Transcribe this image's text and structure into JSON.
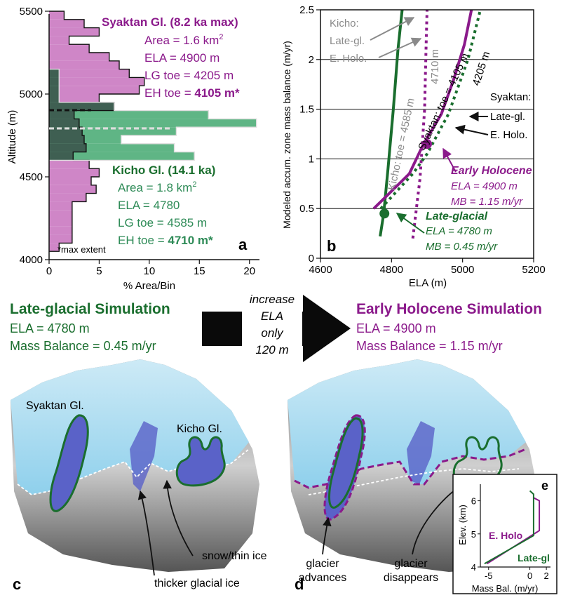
{
  "colors": {
    "purple": "#8b1a8b",
    "green": "#1a6e2e",
    "green_light": "#2e8b57",
    "hist_purple_fill": "#cf86c7",
    "hist_green_fill": "#5fb585",
    "hist_dark_fill": "#3f5f52",
    "gray_text": "#8a8a8a",
    "ice": "#a9dbef",
    "blue_ice": "#5a62c8",
    "rock_dark": "#3b3b3b"
  },
  "panel_a": {
    "letter": "a",
    "ylabel": "Altitude (m)",
    "xlabel": "% Area/Bin",
    "footnote": "*max extent",
    "syktan": {
      "title": "Syaktan Gl. (8.2 ka max)",
      "area": "Area = 1.6 km",
      "area_sup": "2",
      "ela": "ELA = 4900 m",
      "lg_toe": "LG toe = 4205 m",
      "eh_toe_prefix": "EH toe = ",
      "eh_toe_bold": "4105 m*"
    },
    "kicho": {
      "title": "Kicho Gl. (14.1 ka)",
      "area": "Area = 1.8 km",
      "area_sup": "2",
      "ela": "ELA = 4780",
      "lg_toe": "LG toe = 4585 m",
      "eh_toe_prefix": "EH toe = ",
      "eh_toe_bold": "4710 m*"
    }
  },
  "panel_b": {
    "letter": "b",
    "ylabel": "Modeled accum. zone mass balance (m/yr)",
    "xlabel": "ELA (m)",
    "labels": {
      "kicho_key": [
        "Kicho:",
        "Late-gl.",
        "E. Holo."
      ],
      "syktan_key": [
        "Syaktan:",
        "Late-gl.",
        "E. Holo."
      ],
      "kicho_toe": "Kicho: toe = 4585 m",
      "toe_4710": "4710 m",
      "syktan_toe": "Syaktan: toe = 4105 m",
      "toe_4205": "4205 m",
      "early_holocene": "Early Holocene",
      "eh_ela": "ELA = 4900 m",
      "eh_mb": "MB = 1.15 m/yr",
      "late_glacial": "Late-glacial",
      "lg_ela": "ELA = 4780 m",
      "lg_mb": "MB = 0.45 m/yr"
    }
  },
  "chart_data": [
    {
      "type": "bar",
      "orientation": "horizontal-histogram",
      "xlabel": "% Area/Bin",
      "ylabel": "Altitude (m)",
      "xlim": [
        0,
        21
      ],
      "ylim": [
        4000,
        5500
      ],
      "xticks": [
        0,
        5,
        10,
        15,
        20
      ],
      "yticks": [
        4000,
        4500,
        5000,
        5500
      ],
      "series": [
        {
          "name": "Syaktan Gl. (8.2 ka max)",
          "bins": [
            [
              4050,
              4100,
              1
            ],
            [
              4100,
              4150,
              2.3
            ],
            [
              4150,
              4200,
              2.3
            ],
            [
              4200,
              4250,
              2.3
            ],
            [
              4250,
              4300,
              2.3
            ],
            [
              4300,
              4350,
              2.3
            ],
            [
              4350,
              4400,
              3.7
            ],
            [
              4400,
              4450,
              4.7
            ],
            [
              4450,
              4500,
              4.2
            ],
            [
              4500,
              4550,
              5
            ],
            [
              4550,
              4600,
              4
            ],
            [
              4600,
              4650,
              2.4
            ],
            [
              4650,
              4700,
              3.7
            ],
            [
              4700,
              4750,
              3.5
            ],
            [
              4750,
              4800,
              3.3
            ],
            [
              4800,
              4850,
              3
            ],
            [
              4850,
              4900,
              2.5
            ],
            [
              4900,
              4950,
              6.5
            ],
            [
              4950,
              5000,
              5
            ],
            [
              5000,
              5050,
              9
            ],
            [
              5050,
              5100,
              9.5
            ],
            [
              5100,
              5150,
              8
            ],
            [
              5150,
              5200,
              7
            ],
            [
              5200,
              5250,
              6
            ],
            [
              5250,
              5300,
              4
            ],
            [
              5300,
              5350,
              2
            ],
            [
              5350,
              5400,
              5
            ],
            [
              5400,
              5450,
              3.5
            ],
            [
              5450,
              5500,
              1.5
            ]
          ]
        },
        {
          "name": "Kicho Gl. (14.1 ka)",
          "bins": [
            [
              4600,
              4650,
              14.5
            ],
            [
              4650,
              4700,
              12.5
            ],
            [
              4700,
              4750,
              7.2
            ],
            [
              4750,
              4800,
              12.7
            ],
            [
              4800,
              4850,
              20.7
            ],
            [
              4850,
              4900,
              15.9
            ],
            [
              4900,
              4950,
              6.5
            ],
            [
              4950,
              5000,
              1
            ],
            [
              5000,
              5050,
              1
            ],
            [
              5050,
              5100,
              1
            ],
            [
              5100,
              5150,
              1
            ]
          ]
        }
      ]
    },
    {
      "type": "line",
      "xlabel": "ELA (m)",
      "ylabel": "Modeled accum. zone mass balance (m/yr)",
      "xlim": [
        4600,
        5200
      ],
      "ylim": [
        0,
        2.5
      ],
      "xticks": [
        4600,
        4800,
        5000,
        5200
      ],
      "yticks": [
        0,
        0.5,
        1,
        1.5,
        2,
        2.5
      ],
      "grid": "horizontal",
      "series": [
        {
          "name": "Kicho: toe = 4585 m",
          "x": [
            4768,
            4778,
            4790,
            4805,
            4818,
            4830
          ],
          "y": [
            0.22,
            0.45,
            0.9,
            1.5,
            2.1,
            2.5
          ]
        },
        {
          "name": "4710 m",
          "x": [
            4860,
            4880,
            4893,
            4897,
            4900
          ],
          "y": [
            0.2,
            0.8,
            1.5,
            2.1,
            2.5
          ]
        },
        {
          "name": "Syaktan: toe = 4105 m",
          "x": [
            4750,
            4850,
            4890,
            4940,
            4975,
            5005,
            5025
          ],
          "y": [
            0.5,
            0.85,
            1.15,
            1.45,
            1.8,
            2.15,
            2.5
          ]
        },
        {
          "name": "4205 m",
          "x": [
            4770,
            4860,
            4900,
            4960,
            5015,
            5050
          ],
          "y": [
            0.5,
            0.85,
            1.05,
            1.45,
            2.0,
            2.5
          ]
        }
      ],
      "points": [
        {
          "label": "Late-glacial",
          "x": 4780,
          "y": 0.45
        },
        {
          "label": "Early Holocene",
          "x": 4900,
          "y": 1.15
        }
      ]
    },
    {
      "type": "line",
      "xlabel": "Mass Bal. (m/yr)",
      "ylabel": "Elev. (km)",
      "xlim": [
        -6,
        2.5
      ],
      "ylim": [
        4,
        6.5
      ],
      "xticks": [
        -5,
        0,
        2
      ],
      "yticks": [
        4,
        5,
        6
      ],
      "series": [
        {
          "name": "E. Holo",
          "x": [
            -5.2,
            1.15,
            1.15,
            0.4
          ],
          "y": [
            4.1,
            5.1,
            6.0,
            6.1
          ]
        },
        {
          "name": "Late-gl",
          "x": [
            -5.5,
            0.45,
            0.45,
            0.0
          ],
          "y": [
            4.1,
            4.95,
            6.2,
            6.3
          ]
        }
      ]
    }
  ],
  "middle": {
    "lg_title": "Late-glacial Simulation",
    "lg_ela": "ELA = 4780 m",
    "lg_mb": "Mass Balance = 0.45 m/yr",
    "arrow_text": [
      "increase",
      "ELA",
      "only",
      "120 m"
    ],
    "eh_title": "Early Holocene Simulation",
    "eh_ela": "ELA = 4900 m",
    "eh_mb": "Mass Balance = 1.15 m/yr"
  },
  "panel_c": {
    "letter": "c",
    "syktan_label": "Syaktan Gl.",
    "kicho_label": "Kicho Gl.",
    "snow_label": "snow/thin ice",
    "thick_label": "thicker glacial ice"
  },
  "panel_d": {
    "letter": "d",
    "advances_label": [
      "glacier",
      "advances"
    ],
    "disappears_label": [
      "glacier",
      "disappears"
    ]
  },
  "panel_e": {
    "letter": "e",
    "ylabel": "Elev. (km)",
    "xlabel": "Mass Bal. (m/yr)",
    "eh_label": "E. Holo",
    "lg_label": "Late-gl"
  }
}
